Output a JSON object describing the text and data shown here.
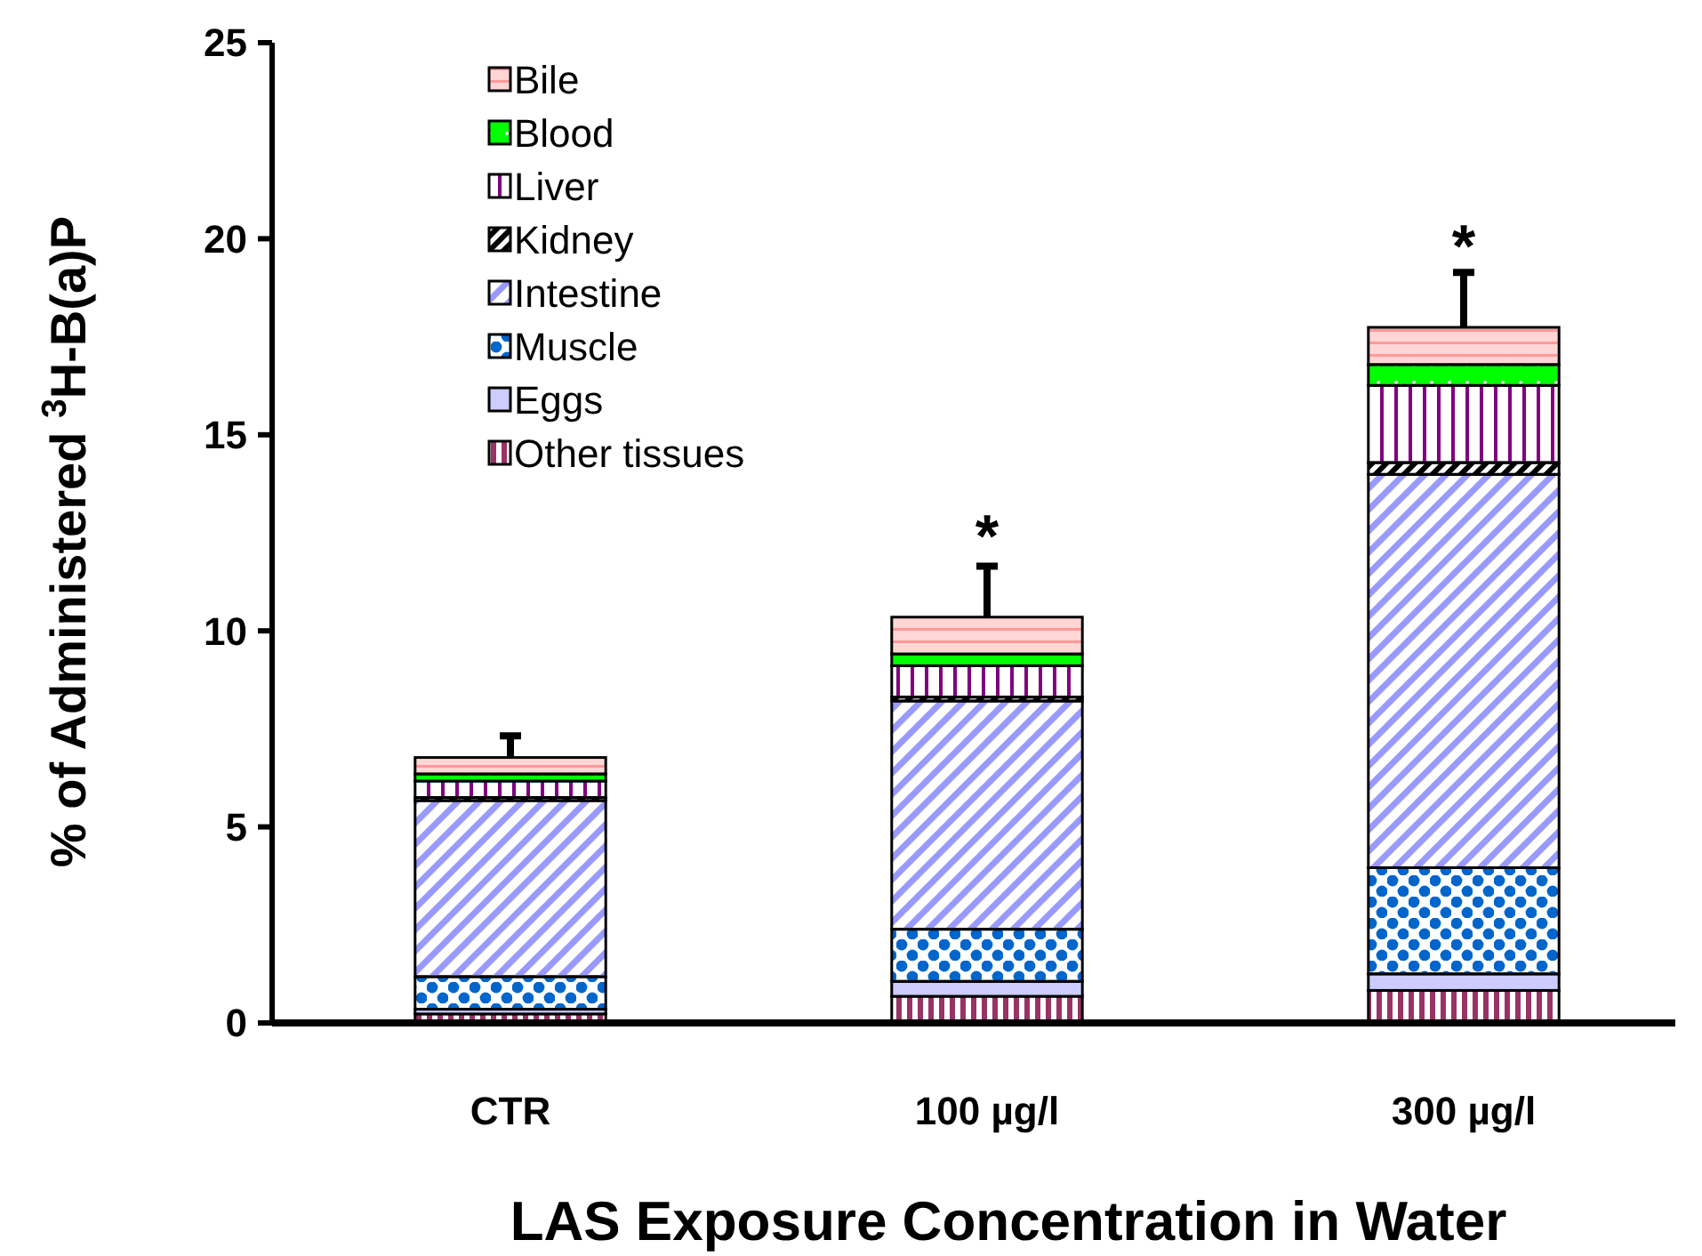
{
  "chart_data": {
    "type": "bar",
    "stacked": true,
    "xlabel": "LAS Exposure Concentration in Water",
    "ylabel": "% of Administered $^{3}$H-B(a)P",
    "categories": [
      "CTR",
      "100 µg/l",
      "300 µg/l"
    ],
    "series": [
      {
        "name": "Other tissues",
        "color": "#993366",
        "values": [
          0.23,
          0.68,
          0.83
        ]
      },
      {
        "name": "Eggs",
        "color": "#ccccff",
        "values": [
          0.12,
          0.38,
          0.42
        ]
      },
      {
        "name": "Muscle",
        "color": "#0066cc",
        "values": [
          0.83,
          1.33,
          2.71
        ]
      },
      {
        "name": "Intestine",
        "color": "#9999ff",
        "values": [
          4.49,
          5.82,
          10.03
        ]
      },
      {
        "name": "Kidney",
        "color": "#000000",
        "values": [
          0.08,
          0.1,
          0.3
        ]
      },
      {
        "name": "Liver",
        "color": "#800080",
        "values": [
          0.42,
          0.8,
          1.97
        ]
      },
      {
        "name": "Blood",
        "color": "#00ff00",
        "values": [
          0.18,
          0.3,
          0.53
        ]
      },
      {
        "name": "Bile",
        "color": "#ff9999",
        "values": [
          0.42,
          0.94,
          0.95
        ],
        "errors": [
          [
            6.77,
            7.32
          ],
          [
            10.35,
            11.65
          ],
          [
            17.74,
            19.14
          ]
        ]
      }
    ],
    "ylim": [
      0,
      25
    ],
    "yticks": [
      0,
      5,
      10,
      15,
      20,
      25
    ],
    "grid": false,
    "legend": "top left",
    "annotations": [
      {
        "text": "*",
        "x": "100 µg/l",
        "y": 10.35
      },
      {
        "text": "*",
        "x": "300 µg/l",
        "y": 17.74
      }
    ]
  }
}
